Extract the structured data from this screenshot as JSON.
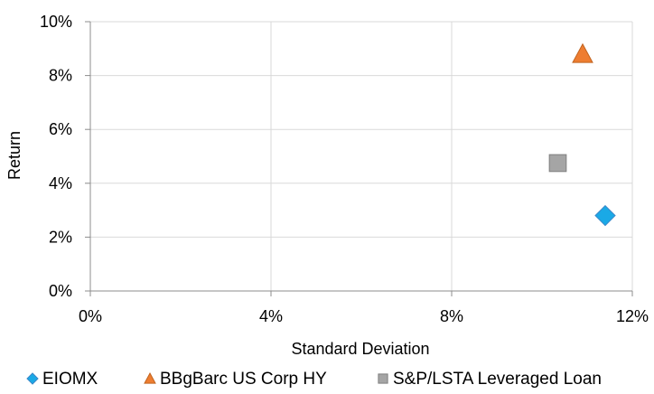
{
  "chart_data": {
    "type": "scatter",
    "xlabel": "Standard Deviation",
    "ylabel": "Return",
    "xlim": [
      0,
      12
    ],
    "ylim": [
      0,
      10
    ],
    "x_ticks": [
      "0%",
      "4%",
      "8%",
      "12%"
    ],
    "y_ticks": [
      "0%",
      "2%",
      "4%",
      "6%",
      "8%",
      "10%"
    ],
    "grid": true,
    "legend_position": "bottom",
    "series": [
      {
        "name": "EIOMX",
        "marker": "diamond",
        "color": "#1aa9e6",
        "x": 11.4,
        "y": 2.8
      },
      {
        "name": "BBgBarc US Corp HY",
        "marker": "triangle",
        "color": "#ee7d31",
        "x": 10.9,
        "y": 8.8
      },
      {
        "name": "S&P/LSTA Leveraged Loan",
        "marker": "square",
        "color": "#a5a5a5",
        "x": 10.35,
        "y": 4.75
      }
    ]
  }
}
